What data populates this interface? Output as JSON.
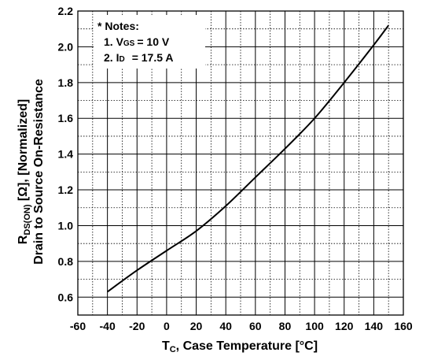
{
  "chart_data": {
    "type": "line",
    "xlabel": {
      "main": "T",
      "sub": "C",
      "rest": ", Case Temperature [°C]"
    },
    "ylabel": {
      "line1": {
        "main": "R",
        "sub": "DS(ON)",
        "rest": " [Ω], [Normalized]"
      },
      "line2": "Drain to Source On-Resistance"
    },
    "xlim": [
      -60,
      160
    ],
    "ylim": [
      0.5,
      2.2
    ],
    "x_ticks": [
      -60,
      -40,
      -20,
      0,
      20,
      40,
      60,
      80,
      100,
      120,
      140,
      160
    ],
    "y_ticks": [
      0.6,
      0.8,
      1.0,
      1.2,
      1.4,
      1.6,
      1.8,
      2.0,
      2.2
    ],
    "y_tick_labels": [
      "0.6",
      "0.8",
      "1.0",
      "1.2",
      "1.4",
      "1.6",
      "1.8",
      "2.0",
      "2.2"
    ],
    "grid": true,
    "notes": {
      "title": "* Notes:",
      "line1": {
        "prefix": "1. V",
        "sub": "GS",
        "value": "= 10 V"
      },
      "line2": {
        "prefix": "2. I",
        "sub": "D",
        "value": "= 17.5 A"
      }
    },
    "series": [
      {
        "x": [
          -40,
          -20,
          0,
          20,
          40,
          60,
          80,
          100,
          120,
          140,
          150
        ],
        "y": [
          0.63,
          0.75,
          0.86,
          0.97,
          1.11,
          1.27,
          1.43,
          1.6,
          1.8,
          2.01,
          2.12
        ]
      }
    ]
  }
}
